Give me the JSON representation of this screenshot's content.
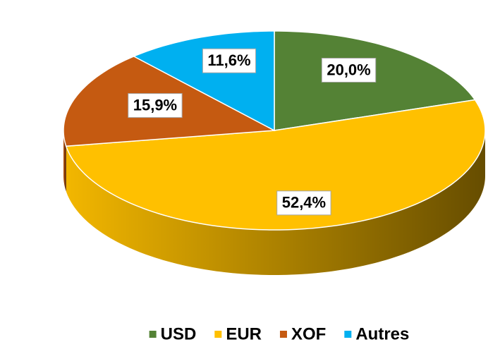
{
  "chart_data": {
    "type": "pie",
    "categories": [
      "USD",
      "EUR",
      "XOF",
      "Autres"
    ],
    "values": [
      20.0,
      52.4,
      15.9,
      11.6
    ],
    "value_labels": [
      "20,0%",
      "52,4%",
      "15,9%",
      "11,6%"
    ],
    "colors": [
      "#548235",
      "#ffc000",
      "#c55a11",
      "#00b0f0"
    ],
    "legend": "bottom"
  }
}
